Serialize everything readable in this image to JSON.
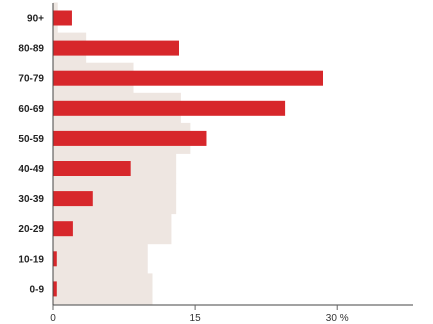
{
  "chart_data": {
    "type": "bar",
    "orientation": "horizontal",
    "categories": [
      "90+",
      "80-89",
      "70-79",
      "60-69",
      "50-59",
      "40-49",
      "30-39",
      "20-29",
      "10-19",
      "0-9"
    ],
    "series": [
      {
        "values": [
          0.5,
          3.5,
          8.5,
          13.5,
          14.5,
          13,
          13,
          12.5,
          10,
          10.5
        ],
        "color": "#eee6e1"
      },
      {
        "values": [
          2,
          13.3,
          28.5,
          24.5,
          16.2,
          8.2,
          4.2,
          2.1,
          0.4,
          0.4
        ],
        "color": "#d7272b"
      }
    ],
    "xlim": [
      0,
      38
    ],
    "xticks": [
      0,
      15,
      30
    ],
    "xtick_labels": [
      "0",
      "15",
      "30 %"
    ],
    "grid": false,
    "legend": "none"
  },
  "colors": {
    "axis": "#444444",
    "tick": "#666666"
  }
}
